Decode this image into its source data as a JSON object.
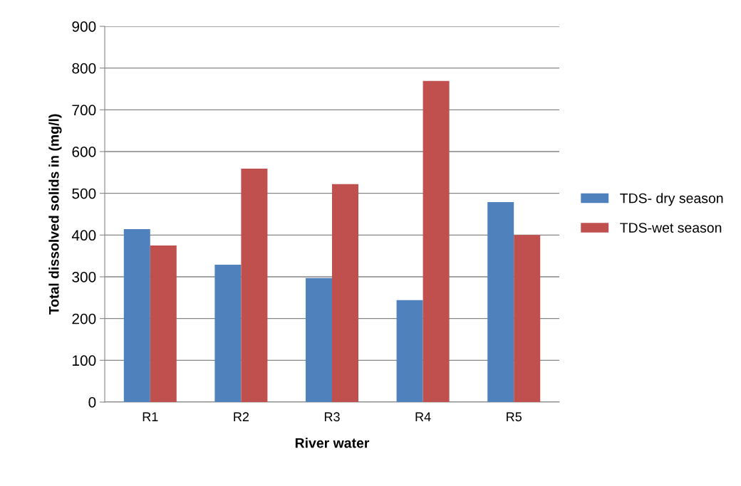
{
  "chart_data": {
    "type": "bar",
    "xlabel": "River water",
    "ylabel": "Total dissolved solids in (mg/l)",
    "categories": [
      "R1",
      "R2",
      "R3",
      "R4",
      "R5"
    ],
    "series": [
      {
        "name": "TDS- dry season",
        "color": "#4f81bd",
        "values": [
          414,
          329,
          297,
          244,
          479
        ]
      },
      {
        "name": "TDS-wet season",
        "color": "#c0504d",
        "values": [
          375,
          559,
          522,
          769,
          400
        ]
      }
    ],
    "ylim": [
      0,
      900
    ],
    "yticks": [
      0,
      100,
      200,
      300,
      400,
      500,
      600,
      700,
      800,
      900
    ],
    "grid": "y",
    "legend": "right"
  }
}
